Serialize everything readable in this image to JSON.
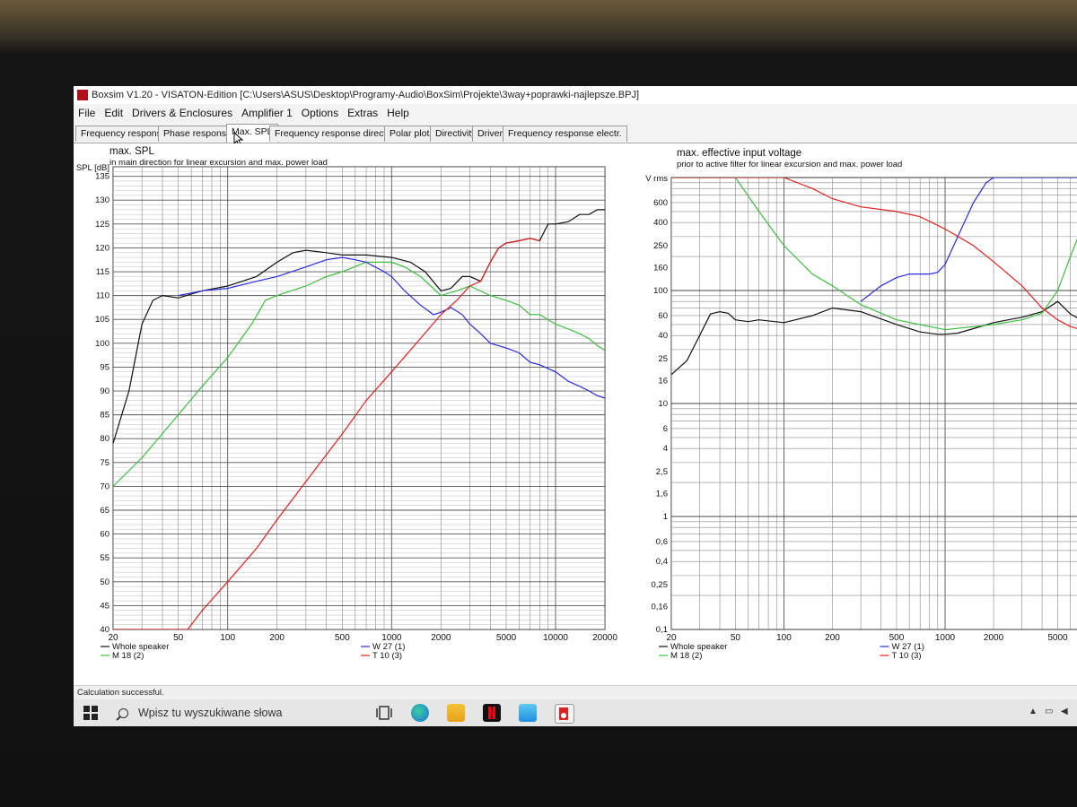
{
  "window": {
    "title": "Boxsim V1.20 - VISATON-Edition [C:\\Users\\ASUS\\Desktop\\Programy-Audio\\BoxSim\\Projekte\\3way+poprawki-najlepsze.BPJ]"
  },
  "menu": [
    "File",
    "Edit",
    "Drivers & Enclosures",
    "Amplifier 1",
    "Options",
    "Extras",
    "Help"
  ],
  "tabs": [
    "Frequency response.",
    "Phase response",
    "Max. SPL",
    "Frequency response directions",
    "Polar plots",
    "Directivity",
    "Driver",
    "Frequency response electr."
  ],
  "active_tab": 2,
  "status": {
    "text": "Calculation successful."
  },
  "taskbar": {
    "search_placeholder": "Wpisz tu wyszukiwane słowa"
  },
  "colors": {
    "whole": "#111111",
    "m18": "#3fbf3f",
    "w27": "#2a2adf",
    "t10": "#e02020"
  },
  "chart_data": [
    {
      "type": "line",
      "title": "max. SPL",
      "subtitle": "in main direction for linear excursion and max. power load",
      "ylabel": "SPL [dB]",
      "xscale": "log",
      "xlim": [
        20,
        20000
      ],
      "ylim": [
        40,
        137
      ],
      "xticks": [
        20,
        50,
        100,
        200,
        500,
        1000,
        2000,
        5000,
        10000,
        20000
      ],
      "xtick_labels": [
        "20",
        "50",
        "100",
        "200",
        "500",
        "1000",
        "2000",
        "5000",
        "10000",
        "20000"
      ],
      "yticks": [
        40,
        45,
        50,
        55,
        60,
        65,
        70,
        75,
        80,
        85,
        90,
        95,
        100,
        105,
        110,
        115,
        120,
        125,
        130,
        135
      ],
      "ytick_labels": [
        "40",
        "45",
        "50",
        "55",
        "60",
        "65",
        "70",
        "75",
        "80",
        "85",
        "90",
        "95",
        "100",
        "105",
        "110",
        "115",
        "120",
        "125",
        "130",
        "135"
      ],
      "grid": true,
      "legend": [
        {
          "name": "Whole speaker",
          "color": "#111111"
        },
        {
          "name": "M 18 (2)",
          "color": "#3fbf3f"
        },
        {
          "name": "W 27 (1)",
          "color": "#2a2adf"
        },
        {
          "name": "T 10 (3)",
          "color": "#e02020"
        }
      ],
      "series": [
        {
          "name": "Whole speaker",
          "color": "#111111",
          "points": [
            [
              20,
              79
            ],
            [
              25,
              90
            ],
            [
              30,
              104
            ],
            [
              35,
              109
            ],
            [
              40,
              110
            ],
            [
              50,
              109.5
            ],
            [
              70,
              111
            ],
            [
              100,
              112
            ],
            [
              150,
              114
            ],
            [
              200,
              117
            ],
            [
              250,
              119
            ],
            [
              300,
              119.5
            ],
            [
              400,
              119
            ],
            [
              500,
              118.5
            ],
            [
              700,
              118.5
            ],
            [
              1000,
              118
            ],
            [
              1300,
              117
            ],
            [
              1600,
              115
            ],
            [
              2000,
              111
            ],
            [
              2300,
              111.5
            ],
            [
              2700,
              114
            ],
            [
              3000,
              114
            ],
            [
              3500,
              113
            ],
            [
              4000,
              117
            ],
            [
              4500,
              120
            ],
            [
              5000,
              121
            ],
            [
              6000,
              121.5
            ],
            [
              7000,
              122
            ],
            [
              8000,
              121.5
            ],
            [
              9000,
              125
            ],
            [
              10000,
              125
            ],
            [
              12000,
              125.5
            ],
            [
              14000,
              127
            ],
            [
              16000,
              127
            ],
            [
              18000,
              128
            ],
            [
              20000,
              128
            ]
          ]
        },
        {
          "name": "M 18 (2)",
          "color": "#3fbf3f",
          "points": [
            [
              20,
              70
            ],
            [
              30,
              76
            ],
            [
              50,
              85
            ],
            [
              70,
              91
            ],
            [
              100,
              97
            ],
            [
              140,
              104
            ],
            [
              170,
              109
            ],
            [
              200,
              110
            ],
            [
              300,
              112
            ],
            [
              400,
              114
            ],
            [
              500,
              115
            ],
            [
              700,
              117
            ],
            [
              1000,
              117
            ],
            [
              1200,
              116
            ],
            [
              1500,
              114
            ],
            [
              2000,
              110
            ],
            [
              2500,
              111
            ],
            [
              3000,
              112
            ],
            [
              4000,
              110
            ],
            [
              5000,
              109
            ],
            [
              6000,
              108
            ],
            [
              7000,
              106
            ],
            [
              8000,
              106
            ],
            [
              10000,
              104
            ],
            [
              12000,
              103
            ],
            [
              14000,
              102
            ],
            [
              16000,
              101
            ],
            [
              18000,
              99.5
            ],
            [
              20000,
              98.5
            ]
          ]
        },
        {
          "name": "W 27 (1)",
          "color": "#2a2adf",
          "points": [
            [
              50,
              110
            ],
            [
              70,
              111
            ],
            [
              100,
              111.5
            ],
            [
              150,
              113
            ],
            [
              200,
              114
            ],
            [
              300,
              116
            ],
            [
              400,
              117.5
            ],
            [
              500,
              118
            ],
            [
              600,
              117.5
            ],
            [
              700,
              117
            ],
            [
              900,
              115
            ],
            [
              1000,
              114
            ],
            [
              1200,
              111
            ],
            [
              1500,
              108
            ],
            [
              1800,
              106
            ],
            [
              2000,
              106.5
            ],
            [
              2300,
              107.5
            ],
            [
              2700,
              106
            ],
            [
              3000,
              104
            ],
            [
              3500,
              102
            ],
            [
              4000,
              100
            ],
            [
              5000,
              99
            ],
            [
              6000,
              98
            ],
            [
              7000,
              96
            ],
            [
              8000,
              95.5
            ],
            [
              10000,
              94
            ],
            [
              12000,
              92
            ],
            [
              14000,
              91
            ],
            [
              16000,
              90
            ],
            [
              18000,
              89
            ],
            [
              20000,
              88.5
            ]
          ]
        },
        {
          "name": "T 10 (3)",
          "color": "#e02020",
          "points": [
            [
              20,
              40
            ],
            [
              57,
              40
            ],
            [
              70,
              44
            ],
            [
              100,
              50
            ],
            [
              150,
              57
            ],
            [
              200,
              63
            ],
            [
              300,
              71
            ],
            [
              500,
              81
            ],
            [
              700,
              88
            ],
            [
              1000,
              94
            ],
            [
              1500,
              101
            ],
            [
              2000,
              106
            ],
            [
              2500,
              109
            ],
            [
              3000,
              112
            ],
            [
              3500,
              113
            ],
            [
              4000,
              117
            ],
            [
              4500,
              120
            ],
            [
              5000,
              121
            ],
            [
              6000,
              121.5
            ],
            [
              7000,
              122
            ],
            [
              8000,
              121.5
            ]
          ]
        }
      ]
    },
    {
      "type": "line",
      "title": "max. effective input voltage",
      "subtitle": "prior to active filter for linear excursion and max. power load",
      "ylabel": "V rms",
      "xscale": "log",
      "yscale": "log",
      "xlim": [
        20,
        8300
      ],
      "ylim": [
        0.1,
        1000
      ],
      "xticks": [
        20,
        50,
        100,
        200,
        500,
        1000,
        2000,
        5000
      ],
      "xtick_labels": [
        "20",
        "50",
        "100",
        "200",
        "500",
        "1000",
        "2000",
        "5000"
      ],
      "yticks": [
        0.1,
        0.16,
        0.25,
        0.4,
        0.6,
        1,
        1.6,
        2.5,
        4,
        6,
        10,
        16,
        25,
        40,
        60,
        100,
        160,
        250,
        400,
        600
      ],
      "ytick_labels": [
        "0,1",
        "0,16",
        "0,25",
        "0,4",
        "0,6",
        "1",
        "1,6",
        "2,5",
        "4",
        "6",
        "10",
        "16",
        "25",
        "40",
        "60",
        "100",
        "160",
        "250",
        "400",
        "600"
      ],
      "grid": true,
      "legend": [
        {
          "name": "Whole speaker",
          "color": "#111111"
        },
        {
          "name": "M 18 (2)",
          "color": "#3fbf3f"
        },
        {
          "name": "W 27 (1)",
          "color": "#2a2adf"
        },
        {
          "name": "T 10 (3)",
          "color": "#e02020"
        }
      ],
      "series": [
        {
          "name": "Whole speaker",
          "color": "#111111",
          "points": [
            [
              20,
              18
            ],
            [
              25,
              24
            ],
            [
              30,
              40
            ],
            [
              35,
              62
            ],
            [
              40,
              65
            ],
            [
              45,
              63
            ],
            [
              50,
              55
            ],
            [
              60,
              53
            ],
            [
              70,
              55
            ],
            [
              100,
              52
            ],
            [
              150,
              60
            ],
            [
              200,
              70
            ],
            [
              300,
              65
            ],
            [
              500,
              50
            ],
            [
              700,
              43
            ],
            [
              900,
              41
            ],
            [
              1000,
              41
            ],
            [
              1200,
              42
            ],
            [
              1500,
              46
            ],
            [
              2000,
              52
            ],
            [
              3000,
              58
            ],
            [
              4000,
              65
            ],
            [
              5000,
              80
            ],
            [
              6000,
              62
            ],
            [
              7000,
              55
            ],
            [
              8300,
              50
            ]
          ]
        },
        {
          "name": "M 18 (2)",
          "color": "#3fbf3f",
          "points": [
            [
              20,
              1000
            ],
            [
              50,
              1000
            ],
            [
              70,
              500
            ],
            [
              100,
              250
            ],
            [
              150,
              140
            ],
            [
              200,
              110
            ],
            [
              300,
              75
            ],
            [
              500,
              55
            ],
            [
              1000,
              45
            ],
            [
              2000,
              50
            ],
            [
              3000,
              55
            ],
            [
              4000,
              63
            ],
            [
              5000,
              100
            ],
            [
              6000,
              200
            ],
            [
              7000,
              350
            ],
            [
              8300,
              600
            ]
          ]
        },
        {
          "name": "W 27 (1)",
          "color": "#2a2adf",
          "points": [
            [
              300,
              80
            ],
            [
              400,
              110
            ],
            [
              500,
              130
            ],
            [
              600,
              140
            ],
            [
              800,
              140
            ],
            [
              900,
              145
            ],
            [
              1000,
              170
            ],
            [
              1200,
              300
            ],
            [
              1500,
              600
            ],
            [
              1800,
              900
            ],
            [
              2000,
              1000
            ],
            [
              5000,
              1000
            ],
            [
              8300,
              1000
            ]
          ]
        },
        {
          "name": "T 10 (3)",
          "color": "#e02020",
          "points": [
            [
              20,
              1000
            ],
            [
              100,
              1000
            ],
            [
              150,
              800
            ],
            [
              200,
              650
            ],
            [
              300,
              550
            ],
            [
              500,
              500
            ],
            [
              700,
              450
            ],
            [
              1000,
              350
            ],
            [
              1500,
              250
            ],
            [
              2000,
              180
            ],
            [
              3000,
              110
            ],
            [
              4000,
              70
            ],
            [
              5000,
              55
            ],
            [
              6000,
              48
            ],
            [
              8300,
              42
            ]
          ]
        }
      ]
    }
  ]
}
